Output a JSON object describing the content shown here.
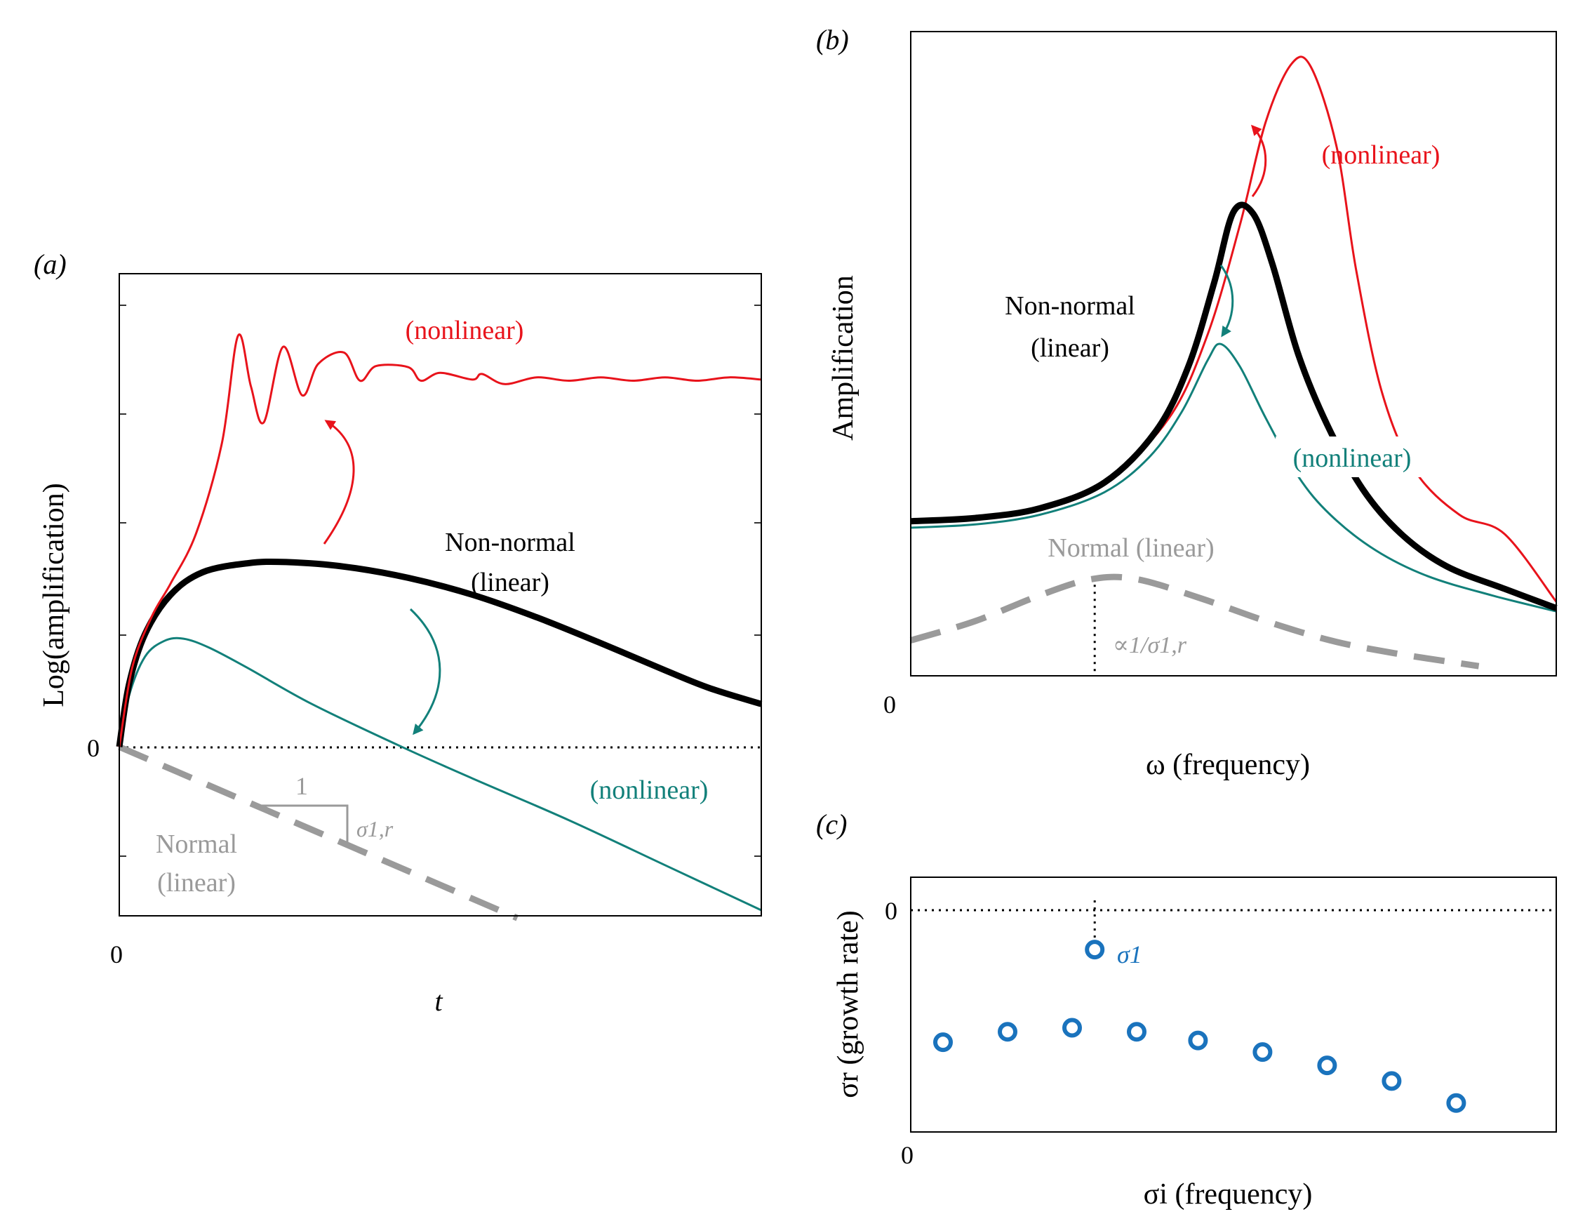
{
  "colors": {
    "red": "#e8131b",
    "teal": "#12807a",
    "black": "#000000",
    "gray": "#9a9a9a",
    "blue": "#1a73bd"
  },
  "chart_data": [
    {
      "panel": "a",
      "type": "line",
      "panel_label": "(a)",
      "xlabel": "t",
      "ylabel": "Log(amplification)",
      "x_zero_label": "0",
      "y_zero_label": "0",
      "xlim": [
        0,
        10
      ],
      "ylim": [
        -1.5,
        4.2
      ],
      "zero_line": 0,
      "series": [
        {
          "key": "red",
          "name": "(nonlinear)",
          "color_key": "red",
          "x": [
            0,
            0.2,
            0.5,
            0.8,
            1.2,
            1.6,
            1.85,
            2.05,
            2.25,
            2.55,
            2.85,
            3.1,
            3.5,
            3.75,
            4.0,
            4.5,
            4.7,
            5.0,
            5.5,
            5.65,
            6.0,
            6.5,
            7.0,
            7.5,
            8.0,
            8.5,
            9.0,
            9.5,
            10.0
          ],
          "y": [
            0,
            0.7,
            1.15,
            1.45,
            1.9,
            2.7,
            3.65,
            3.2,
            2.88,
            3.55,
            3.12,
            3.4,
            3.5,
            3.25,
            3.38,
            3.37,
            3.25,
            3.32,
            3.26,
            3.31,
            3.22,
            3.28,
            3.25,
            3.28,
            3.25,
            3.28,
            3.25,
            3.28,
            3.26
          ]
        },
        {
          "key": "black",
          "name": "Non-normal (linear)",
          "color_key": "black",
          "x": [
            0,
            0.15,
            0.4,
            0.8,
            1.3,
            2.0,
            2.6,
            3.5,
            4.5,
            5.5,
            6.5,
            7.5,
            8.5,
            9.2,
            10.0
          ],
          "y": [
            0,
            0.55,
            1.0,
            1.35,
            1.55,
            1.63,
            1.64,
            1.6,
            1.5,
            1.35,
            1.15,
            0.92,
            0.68,
            0.52,
            0.38
          ]
        },
        {
          "key": "teal",
          "name": "(nonlinear)",
          "color_key": "teal",
          "x": [
            0,
            0.15,
            0.4,
            0.7,
            1.0,
            1.4,
            2.0,
            3.0,
            4.4,
            5.5,
            7.0,
            8.5,
            10.0
          ],
          "y": [
            0,
            0.45,
            0.8,
            0.94,
            0.96,
            0.88,
            0.7,
            0.38,
            0.0,
            -0.28,
            -0.65,
            -1.05,
            -1.45
          ]
        },
        {
          "key": "gray",
          "name": "Normal (linear)",
          "color_key": "gray",
          "x": [
            0,
            6.2
          ],
          "y": [
            0,
            -1.52
          ]
        }
      ],
      "annotations": {
        "red_label": "(nonlinear)",
        "black_label_1": "Non-normal",
        "black_label_2": "(linear)",
        "teal_label": "(nonlinear)",
        "gray_label_1": "Normal",
        "gray_label_2": "(linear)",
        "slope_run": "1",
        "slope_rise": "σ1,r"
      }
    },
    {
      "panel": "b",
      "type": "line",
      "panel_label": "(b)",
      "xlabel": "ω (frequency)",
      "ylabel": "Amplification",
      "x_zero_label": "0",
      "xlim": [
        0,
        10
      ],
      "ylim": [
        0,
        10
      ],
      "series": [
        {
          "key": "red",
          "name": "(nonlinear)",
          "color_key": "red",
          "x": [
            0,
            1.0,
            2.0,
            3.0,
            4.0,
            4.6,
            5.1,
            5.5,
            5.9,
            6.2,
            6.6,
            6.9,
            7.3,
            7.8,
            8.5,
            9.2,
            10.0
          ],
          "y": [
            2.4,
            2.45,
            2.62,
            3.0,
            4.0,
            5.3,
            7.0,
            8.6,
            9.5,
            9.45,
            8.2,
            6.3,
            4.4,
            3.2,
            2.5,
            2.2,
            1.15
          ]
        },
        {
          "key": "black",
          "name": "Non-normal (linear)",
          "color_key": "black",
          "x": [
            0,
            1.0,
            2.0,
            3.0,
            3.8,
            4.3,
            4.7,
            5.0,
            5.3,
            5.6,
            6.0,
            6.45,
            7.0,
            7.6,
            8.3,
            9.2,
            10.0
          ],
          "y": [
            2.4,
            2.45,
            2.6,
            3.0,
            3.8,
            4.8,
            6.1,
            7.2,
            7.18,
            6.4,
            5.0,
            3.9,
            2.9,
            2.2,
            1.7,
            1.35,
            1.05
          ]
        },
        {
          "key": "teal",
          "name": "(nonlinear)",
          "color_key": "teal",
          "x": [
            0,
            1.0,
            2.0,
            3.0,
            3.7,
            4.2,
            4.6,
            4.8,
            5.1,
            5.5,
            6.0,
            6.5,
            7.2,
            8.0,
            9.0,
            10.0
          ],
          "y": [
            2.3,
            2.35,
            2.5,
            2.85,
            3.4,
            4.1,
            4.9,
            5.15,
            4.8,
            4.0,
            3.1,
            2.5,
            1.95,
            1.55,
            1.25,
            1.0
          ]
        },
        {
          "key": "gray",
          "name": "Normal (linear)",
          "color_key": "gray",
          "x": [
            0,
            1.0,
            2.0,
            2.8,
            3.5,
            4.5,
            5.5,
            6.5,
            7.5,
            8.8
          ],
          "y": [
            0.55,
            0.85,
            1.25,
            1.5,
            1.5,
            1.2,
            0.85,
            0.55,
            0.35,
            0.15
          ]
        }
      ],
      "marker_x": 2.85,
      "annotations": {
        "red_label": "(nonlinear)",
        "black_label_1": "Non-normal",
        "black_label_2": "(linear)",
        "teal_label": "(nonlinear)",
        "gray_label": "Normal (linear)",
        "peak_label": "∝1/σ1,r"
      }
    },
    {
      "panel": "c",
      "type": "scatter",
      "panel_label": "(c)",
      "xlabel": "σi (frequency)",
      "ylabel": "σr (growth rate)",
      "x_zero_label": "0",
      "y_zero_label": "0",
      "xlim": [
        0,
        10
      ],
      "ylim": [
        -4,
        0.4
      ],
      "zero_line": 0,
      "points": [
        {
          "x": 0.5,
          "y": -2.45
        },
        {
          "x": 1.5,
          "y": -2.27
        },
        {
          "x": 2.5,
          "y": -2.2
        },
        {
          "x": 3.5,
          "y": -2.27
        },
        {
          "x": 4.45,
          "y": -2.42
        },
        {
          "x": 5.45,
          "y": -2.62
        },
        {
          "x": 6.45,
          "y": -2.85
        },
        {
          "x": 7.45,
          "y": -3.12
        },
        {
          "x": 8.45,
          "y": -3.5
        }
      ],
      "highlight_point": {
        "x": 2.85,
        "y": -0.85
      },
      "annotations": {
        "point_label": "σ1"
      }
    }
  ]
}
